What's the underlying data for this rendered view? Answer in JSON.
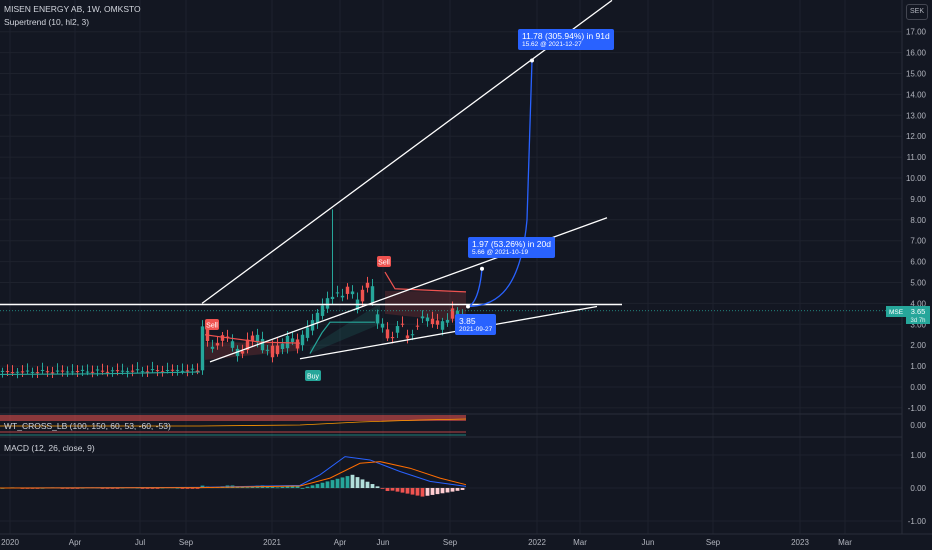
{
  "header": {
    "title": "MISEN ENERGY AB, 1W, OMKSTO",
    "indicator": "Supertrend (10, hl2, 3)",
    "currency": "SEK"
  },
  "price_ticks": [
    "17.00",
    "16.00",
    "15.00",
    "14.00",
    "13.00",
    "12.00",
    "11.00",
    "10.00",
    "9.00",
    "8.00",
    "7.00",
    "6.00",
    "5.00",
    "4.00",
    "3.00",
    "2.00",
    "1.00",
    "0.00",
    "-1.00"
  ],
  "wt_ticks": [
    "0.00"
  ],
  "macd_ticks": [
    "1.00",
    "0.00",
    "-1.00"
  ],
  "x_labels": [
    "2020",
    "Apr",
    "Jul",
    "Sep",
    "2021",
    "Apr",
    "Jun",
    "Sep",
    "2022",
    "Mar",
    "Jun",
    "Sep",
    "2023",
    "Mar"
  ],
  "price_label": {
    "symbol": "MSE",
    "value": "3.65",
    "countdown": "3d 7h"
  },
  "signals": {
    "sell": "Sell",
    "buy": "Buy"
  },
  "indicators": {
    "wt": "WT_CROSS_LB (100, 150, 60, 53, -60, -53)",
    "macd": "MACD (12, 26, close, 9)"
  },
  "annotations": [
    {
      "line1": "11.78 (305.94%) in 91d",
      "line2": "15.62 @ 2021-12-27"
    },
    {
      "line1": "1.97 (53.26%) in 20d",
      "line2": "5.66 @ 2021-10-19"
    },
    {
      "line1": "3.85",
      "line2": "2021-09-27"
    }
  ],
  "chart_data": [
    {
      "type": "candlestick",
      "title": "MISEN ENERGY AB, 1W, OMKSTO",
      "ylim": [
        -1.3,
        17.5
      ],
      "y_scale": "linear",
      "series": [
        {
          "name": "MSE",
          "x": [
            "2019-12",
            "2020-03",
            "2020-06",
            "2020-09-07",
            "2020-09-21",
            "2020-10",
            "2020-11",
            "2020-12",
            "2021-01",
            "2021-02",
            "2021-02-15",
            "2021-03",
            "2021-04",
            "2021-05",
            "2021-06",
            "2021-07",
            "2021-08",
            "2021-09",
            "2021-09-27"
          ],
          "values": [
            0.7,
            0.72,
            0.75,
            0.8,
            3.0,
            2.2,
            2.0,
            2.1,
            2.5,
            3.2,
            4.5,
            4.2,
            3.9,
            3.5,
            2.7,
            2.8,
            2.9,
            3.2,
            3.65
          ]
        },
        {
          "name": "Supertrend",
          "values": [
            0.6,
            0.62,
            0.65,
            0.7,
            2.6,
            2.4,
            2.3,
            1.7,
            1.8,
            3.0,
            3.9,
            3.9,
            3.9,
            4.5,
            4.5,
            4.5,
            4.5,
            4.5,
            4.5
          ]
        }
      ],
      "horizontal_line": 3.95
    },
    {
      "type": "line",
      "title": "MACD (12, 26, close, 9)",
      "ylim": [
        -1.25,
        1.25
      ],
      "series": [
        {
          "name": "MACD",
          "values": [
            0,
            0,
            0,
            0.02,
            0.05,
            0.05,
            0.08,
            0.1,
            0.4,
            0.9,
            0.8,
            0.6,
            0.25,
            0.05
          ]
        },
        {
          "name": "Signal",
          "values": [
            0,
            0,
            0,
            0.01,
            0.03,
            0.04,
            0.06,
            0.08,
            0.25,
            0.7,
            0.8,
            0.55,
            0.3,
            0.1
          ]
        }
      ]
    }
  ],
  "colors": {
    "background": "#131722",
    "up": "#26a69a",
    "down": "#ef5350",
    "accent": "#2962ff",
    "trendline": "#ffffff"
  }
}
